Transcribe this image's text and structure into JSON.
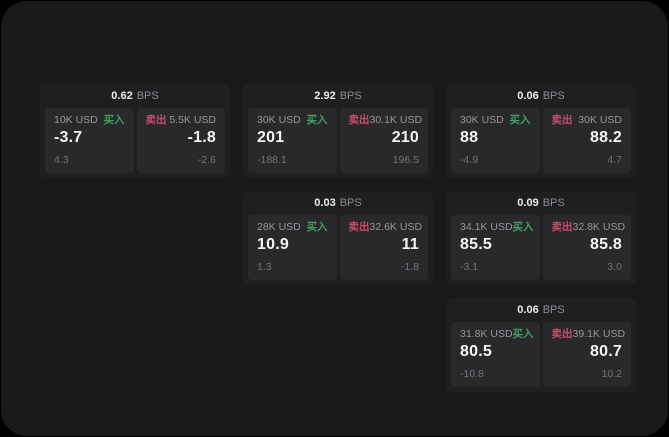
{
  "labels": {
    "bps_unit": "BPS",
    "buy": "买入",
    "sell": "卖出"
  },
  "colors": {
    "page_background": "#000000",
    "frame_background": "#1a1a1c",
    "card_background": "#1f1f22",
    "panel_background": "#29292c",
    "buy_accent": "#40a065",
    "sell_accent": "#c74d6b",
    "primary_text": "#f5f5f6",
    "secondary_text": "#98989c",
    "muted_text": "#747478"
  },
  "cards": [
    {
      "bps": "0.62",
      "buy": {
        "amount": "10K USD",
        "price": "-3.7",
        "change": "4.3"
      },
      "sell": {
        "amount": "5.5K USD",
        "price": "-1.8",
        "change": "-2.6"
      }
    },
    {
      "bps": "2.92",
      "buy": {
        "amount": "30K USD",
        "price": "201",
        "change": "-188.1"
      },
      "sell": {
        "amount": "30.1K USD",
        "price": "210",
        "change": "196.5"
      }
    },
    {
      "bps": "0.06",
      "buy": {
        "amount": "30K USD",
        "price": "88",
        "change": "-4.9"
      },
      "sell": {
        "amount": "30K USD",
        "price": "88.2",
        "change": "4.7"
      }
    },
    {
      "bps": "0.03",
      "buy": {
        "amount": "28K USD",
        "price": "10.9",
        "change": "1.3"
      },
      "sell": {
        "amount": "32.6K USD",
        "price": "11",
        "change": "-1.8"
      }
    },
    {
      "bps": "0.09",
      "buy": {
        "amount": "34.1K USD",
        "price": "85.5",
        "change": "-3.1"
      },
      "sell": {
        "amount": "32.8K USD",
        "price": "85.8",
        "change": "3.0"
      }
    },
    {
      "bps": "0.06",
      "buy": {
        "amount": "31.8K USD",
        "price": "80.5",
        "change": "-10.8"
      },
      "sell": {
        "amount": "39.1K USD",
        "price": "80.7",
        "change": "10.2"
      }
    }
  ]
}
